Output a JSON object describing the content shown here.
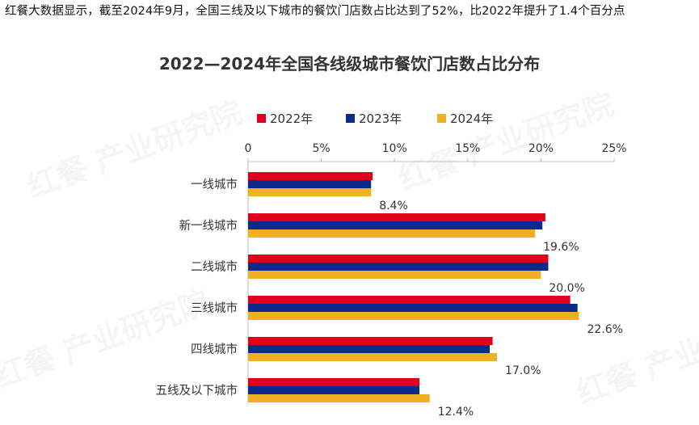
{
  "headline": "红餐大数据显示，截至2024年9月，全国三线及以下城市的餐饮门店数占比达到了52%，比2022年提升了1.4个百分点",
  "watermark": "红餐 产业研究院",
  "chart_data": {
    "type": "bar",
    "orientation": "horizontal",
    "title": "2022—2024年全国各线级城市餐饮门店数占比分布",
    "categories": [
      "一线城市",
      "新一线城市",
      "二线城市",
      "三线城市",
      "四线城市",
      "五线及以下城市"
    ],
    "series": [
      {
        "name": "2022年",
        "color": "#e0001b",
        "values": [
          8.5,
          20.3,
          20.5,
          22.0,
          16.7,
          11.7
        ]
      },
      {
        "name": "2023年",
        "color": "#0b2a8c",
        "values": [
          8.4,
          20.1,
          20.5,
          22.5,
          16.5,
          11.7
        ]
      },
      {
        "name": "2024年",
        "color": "#f0b022",
        "values": [
          8.4,
          19.6,
          20.0,
          22.6,
          17.0,
          12.4
        ]
      }
    ],
    "data_labels": [
      "8.4%",
      "19.6%",
      "20.0%",
      "22.6%",
      "17.0%",
      "12.4%"
    ],
    "xaxis": {
      "ticks": [
        "0",
        "5%",
        "10%",
        "15%",
        "20%",
        "25%"
      ],
      "range": [
        0,
        25
      ],
      "position": "top"
    },
    "legend_position": "top",
    "grid": false
  }
}
